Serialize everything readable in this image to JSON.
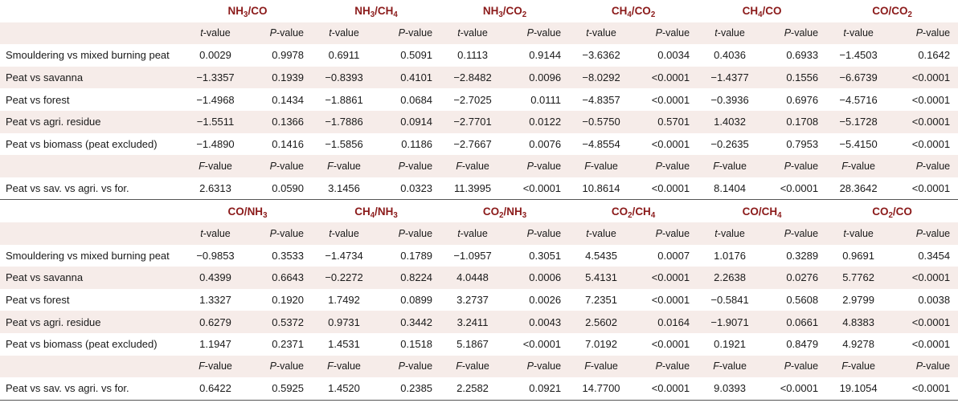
{
  "colors": {
    "header_text": "#8b1a1a",
    "shade": "#f6ece9",
    "rule": "#555555"
  },
  "blocks": [
    {
      "ratios": [
        {
          "a": "NH",
          "as": "3",
          "b": "CO",
          "bs": ""
        },
        {
          "a": "NH",
          "as": "3",
          "b": "CH",
          "bs": "4"
        },
        {
          "a": "NH",
          "as": "3",
          "b": "CO",
          "bs": "2"
        },
        {
          "a": "CH",
          "as": "4",
          "b": "CO",
          "bs": "2"
        },
        {
          "a": "CH",
          "as": "4",
          "b": "CO",
          "bs": ""
        },
        {
          "a": "CO",
          "as": "",
          "b": "CO",
          "bs": "2"
        }
      ],
      "t_rows": [
        {
          "label": "Smouldering vs mixed burning peat",
          "cells": [
            "0.0029",
            "0.9978",
            "0.6911",
            "0.5091",
            "0.1113",
            "0.9144",
            "−3.6362",
            "0.0034",
            "0.4036",
            "0.6933",
            "−1.4503",
            "0.1642"
          ]
        },
        {
          "label": "Peat vs savanna",
          "cells": [
            "−1.3357",
            "0.1939",
            "−0.8393",
            "0.4101",
            "−2.8482",
            "0.0096",
            "−8.0292",
            "<0.0001",
            "−1.4377",
            "0.1556",
            "−6.6739",
            "<0.0001"
          ]
        },
        {
          "label": "Peat vs forest",
          "cells": [
            "−1.4968",
            "0.1434",
            "−1.8861",
            "0.0684",
            "−2.7025",
            "0.0111",
            "−4.8357",
            "<0.0001",
            "−0.3936",
            "0.6976",
            "−4.5716",
            "<0.0001"
          ]
        },
        {
          "label": "Peat vs agri. residue",
          "cells": [
            "−1.5511",
            "0.1366",
            "−1.7886",
            "0.0914",
            "−2.7701",
            "0.0122",
            "−0.5750",
            "0.5701",
            "1.4032",
            "0.1708",
            "−5.1728",
            "<0.0001"
          ]
        },
        {
          "label": "Peat vs biomass (peat excluded)",
          "cells": [
            "−1.4890",
            "0.1416",
            "−1.5856",
            "0.1186",
            "−2.7667",
            "0.0076",
            "−4.8554",
            "<0.0001",
            "−0.2635",
            "0.7953",
            "−5.4150",
            "<0.0001"
          ]
        }
      ],
      "f_row": {
        "label": "Peat vs sav. vs agri. vs for.",
        "cells": [
          "2.6313",
          "0.0590",
          "3.1456",
          "0.0323",
          "11.3995",
          "<0.0001",
          "10.8614",
          "<0.0001",
          "8.1404",
          "<0.0001",
          "28.3642",
          "<0.0001"
        ]
      }
    },
    {
      "ratios": [
        {
          "a": "CO",
          "as": "",
          "b": "NH",
          "bs": "3"
        },
        {
          "a": "CH",
          "as": "4",
          "b": "NH",
          "bs": "3"
        },
        {
          "a": "CO",
          "as": "2",
          "b": "NH",
          "bs": "3"
        },
        {
          "a": "CO",
          "as": "2",
          "b": "CH",
          "bs": "4"
        },
        {
          "a": "CO",
          "as": "",
          "b": "CH",
          "bs": "4"
        },
        {
          "a": "CO",
          "as": "2",
          "b": "CO",
          "bs": ""
        }
      ],
      "t_rows": [
        {
          "label": "Smouldering vs mixed burning peat",
          "cells": [
            "−0.9853",
            "0.3533",
            "−1.4734",
            "0.1789",
            "−1.0957",
            "0.3051",
            "4.5435",
            "0.0007",
            "1.0176",
            "0.3289",
            "0.9691",
            "0.3454"
          ]
        },
        {
          "label": "Peat vs savanna",
          "cells": [
            "0.4399",
            "0.6643",
            "−0.2272",
            "0.8224",
            "4.0448",
            "0.0006",
            "5.4131",
            "<0.0001",
            "2.2638",
            "0.0276",
            "5.7762",
            "<0.0001"
          ]
        },
        {
          "label": "Peat vs forest",
          "cells": [
            "1.3327",
            "0.1920",
            "1.7492",
            "0.0899",
            "3.2737",
            "0.0026",
            "7.2351",
            "<0.0001",
            "−0.5841",
            "0.5608",
            "2.9799",
            "0.0038"
          ]
        },
        {
          "label": "Peat vs agri. residue",
          "cells": [
            "0.6279",
            "0.5372",
            "0.9731",
            "0.3442",
            "3.2411",
            "0.0043",
            "2.5602",
            "0.0164",
            "−1.9071",
            "0.0661",
            "4.8383",
            "<0.0001"
          ]
        },
        {
          "label": "Peat vs biomass (peat excluded)",
          "cells": [
            "1.1947",
            "0.2371",
            "1.4531",
            "0.1518",
            "5.1867",
            "<0.0001",
            "7.0192",
            "<0.0001",
            "0.1921",
            "0.8479",
            "4.9278",
            "<0.0001"
          ]
        }
      ],
      "f_row": {
        "label": "Peat vs sav. vs agri. vs for.",
        "cells": [
          "0.6422",
          "0.5925",
          "1.4520",
          "0.2385",
          "2.2582",
          "0.0921",
          "14.7700",
          "<0.0001",
          "9.0393",
          "<0.0001",
          "19.1054",
          "<0.0001"
        ]
      }
    }
  ],
  "stat_labels": {
    "t_letter": "t",
    "f_letter": "F",
    "p_letter": "P",
    "suffix": "-value"
  }
}
